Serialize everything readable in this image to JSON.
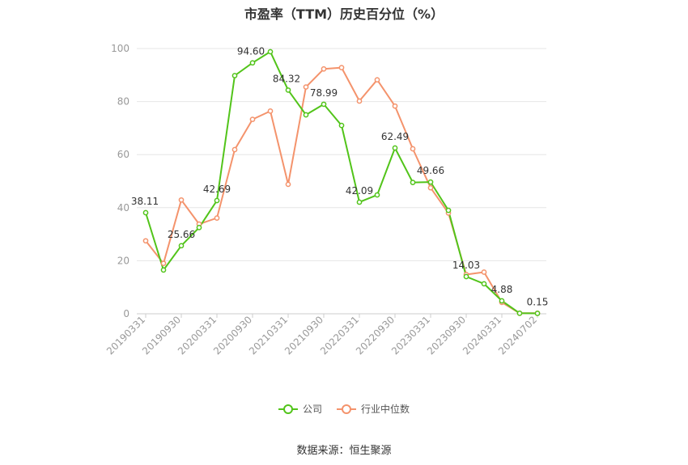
{
  "source_text": "数据来源：恒生聚源",
  "chart_data": {
    "type": "line",
    "title": "市盈率（TTM）历史百分位（%）",
    "xlabel": "",
    "ylabel": "",
    "ylim": [
      0,
      100
    ],
    "yticks": [
      0,
      20,
      40,
      60,
      80,
      100
    ],
    "grid": true,
    "legend_position": "bottom-center",
    "x": [
      "20190331",
      "20190630",
      "20190930",
      "20191231",
      "20200331",
      "20200630",
      "20200930",
      "20201231",
      "20210331",
      "20210630",
      "20210930",
      "20211231",
      "20220331",
      "20220630",
      "20220930",
      "20221231",
      "20230331",
      "20230630",
      "20230930",
      "20231231",
      "20240331",
      "20240630",
      "20240702"
    ],
    "x_tick_labels": [
      "20190331",
      "20190930",
      "20200331",
      "20200930",
      "20210331",
      "20210930",
      "20220331",
      "20220930",
      "20230331",
      "20230930",
      "20240331",
      "20240702"
    ],
    "series": [
      {
        "name": "公司",
        "color": "#52c41a",
        "values": [
          38.11,
          16.5,
          25.66,
          32.5,
          42.69,
          89.8,
          94.6,
          98.8,
          84.32,
          75.0,
          78.99,
          71.0,
          42.09,
          44.8,
          62.49,
          49.5,
          49.66,
          39.0,
          14.03,
          11.3,
          4.88,
          0.2,
          0.15
        ],
        "labels": {
          "0": "38.11",
          "2": "25.66",
          "4": "42.69",
          "6": "94.60",
          "8": "84.32",
          "10": "78.99",
          "12": "42.09",
          "14": "62.49",
          "16": "49.66",
          "18": "14.03",
          "20": "4.88",
          "22": "0.15"
        }
      },
      {
        "name": "行业中位数",
        "color": "#f4936c",
        "values": [
          27.5,
          19.0,
          42.9,
          33.8,
          36.1,
          61.9,
          73.3,
          76.4,
          48.8,
          85.5,
          92.3,
          92.8,
          80.2,
          88.2,
          78.3,
          62.2,
          47.5,
          38.0,
          14.8,
          15.7,
          4.3,
          0.2,
          0.2
        ]
      }
    ]
  }
}
